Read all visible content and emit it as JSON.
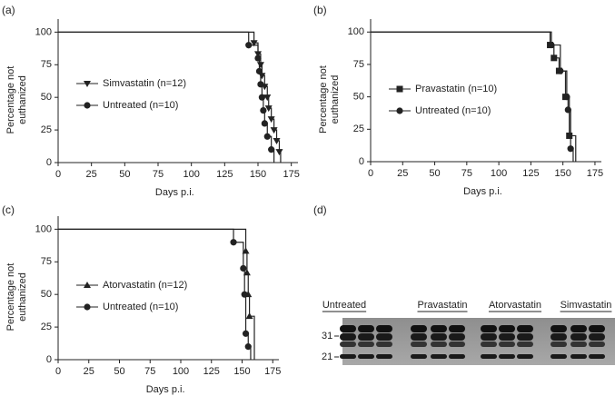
{
  "chart_data": [
    {
      "type": "step",
      "panel": "(a)",
      "xlabel": "Days p.i.",
      "ylabel": [
        "Percentage not",
        "euthanized"
      ],
      "xlim": [
        0,
        180
      ],
      "ylim": [
        0,
        110
      ],
      "xticks": [
        0,
        25,
        50,
        75,
        100,
        125,
        150,
        175
      ],
      "yticks": [
        0,
        25,
        50,
        75,
        100
      ],
      "series": [
        {
          "name": "Simvastatin (n=12)",
          "marker": "triangle-down",
          "color": "#222",
          "x": [
            0,
            147,
            150,
            152,
            153,
            155,
            157,
            158,
            160,
            162,
            164,
            166,
            167
          ],
          "values": [
            100,
            91.7,
            83.3,
            75,
            66.7,
            58.3,
            50,
            41.7,
            33.3,
            25,
            16.7,
            8.3,
            0
          ]
        },
        {
          "name": "Untreated (n=10)",
          "marker": "circle",
          "color": "#222",
          "x": [
            0,
            143,
            150,
            151,
            152,
            153,
            154,
            155,
            157,
            160,
            162
          ],
          "values": [
            100,
            90,
            80,
            70,
            60,
            50,
            40,
            30,
            20,
            10,
            0
          ]
        }
      ]
    },
    {
      "type": "step",
      "panel": "(b)",
      "xlabel": "Days p.i.",
      "ylabel": [
        "Percentage not",
        "euthanized"
      ],
      "xlim": [
        0,
        180
      ],
      "ylim": [
        0,
        110
      ],
      "xticks": [
        0,
        25,
        50,
        75,
        100,
        125,
        150,
        175
      ],
      "yticks": [
        0,
        25,
        50,
        75,
        100
      ],
      "series": [
        {
          "name": "Pravastatin (n=10)",
          "marker": "square",
          "color": "#222",
          "x": [
            0,
            140,
            143,
            147,
            152,
            155,
            160
          ],
          "values": [
            100,
            90,
            80,
            70,
            50,
            20,
            0
          ]
        },
        {
          "name": "Untreated (n=10)",
          "marker": "circle",
          "color": "#222",
          "x": [
            0,
            141,
            148,
            153,
            154,
            156,
            158
          ],
          "values": [
            100,
            90,
            70,
            50,
            40,
            10,
            0
          ]
        }
      ]
    },
    {
      "type": "step",
      "panel": "(c)",
      "xlabel": "Days p.i.",
      "ylabel": [
        "Percentage not",
        "euthanized"
      ],
      "xlim": [
        0,
        180
      ],
      "ylim": [
        0,
        110
      ],
      "xticks": [
        0,
        25,
        50,
        75,
        100,
        125,
        150,
        175
      ],
      "yticks": [
        0,
        25,
        50,
        75,
        100
      ],
      "series": [
        {
          "name": "Atorvastatin (n=12)",
          "marker": "triangle-up",
          "color": "#222",
          "x": [
            0,
            153,
            154,
            155,
            156,
            160
          ],
          "values": [
            100,
            83.3,
            66.7,
            50,
            33.3,
            0
          ]
        },
        {
          "name": "Untreated (n=10)",
          "marker": "circle",
          "color": "#222",
          "x": [
            0,
            143,
            151,
            152,
            153,
            155,
            157
          ],
          "values": [
            100,
            90,
            70,
            50,
            20,
            10,
            0
          ]
        }
      ]
    }
  ],
  "blot": {
    "panel": "(d)",
    "lanes": [
      "Untreated",
      "Pravastatin",
      "Atorvastatin",
      "Simvastatin"
    ],
    "markers": [
      "31",
      "21"
    ]
  }
}
